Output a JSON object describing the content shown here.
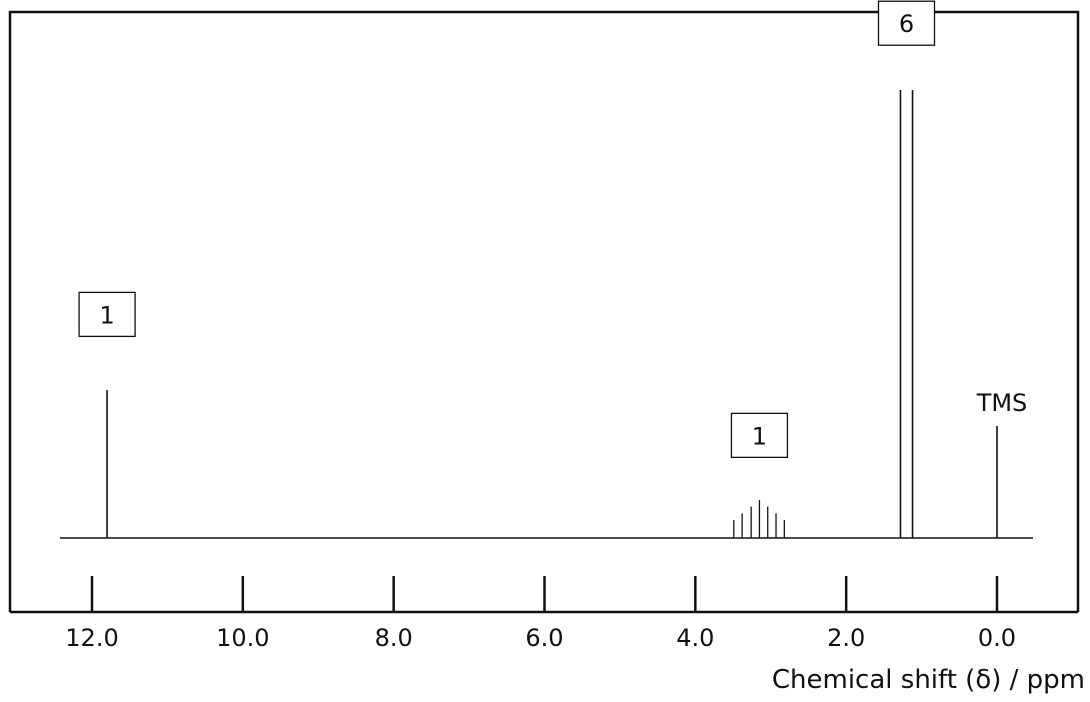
{
  "chart_data": {
    "type": "line",
    "x_axis": {
      "label": "Chemical shift (δ) / ppm",
      "reversed": true,
      "range": [
        12.4,
        -0.5
      ],
      "ticks": [
        12.0,
        10.0,
        8.0,
        6.0,
        4.0,
        2.0,
        0.0
      ],
      "tick_labels": [
        "12.0",
        "10.0",
        "8.0",
        "6.0",
        "4.0",
        "2.0",
        "0.0"
      ]
    },
    "y_axis": {
      "label": "",
      "shown": false
    },
    "grid": false,
    "peaks": [
      {
        "shift": 11.8,
        "height": 0.33,
        "integration": "1"
      },
      {
        "shift": 3.15,
        "height": 0.085,
        "integration": "1",
        "multiplicity_lines": [
          {
            "shift": 3.49,
            "height": 0.04
          },
          {
            "shift": 3.38,
            "height": 0.055
          },
          {
            "shift": 3.26,
            "height": 0.07
          },
          {
            "shift": 3.15,
            "height": 0.085
          },
          {
            "shift": 3.04,
            "height": 0.07
          },
          {
            "shift": 2.93,
            "height": 0.055
          },
          {
            "shift": 2.82,
            "height": 0.04
          }
        ]
      },
      {
        "shift": 1.28,
        "height": 1.0,
        "integration": "6"
      },
      {
        "shift": 1.12,
        "height": 1.0,
        "integration": "6"
      },
      {
        "shift": 0.0,
        "height": 0.25,
        "label": "TMS"
      }
    ],
    "integration_boxes": [
      {
        "text": "1",
        "shift": 11.8,
        "level": 0.45
      },
      {
        "text": "1",
        "shift": 3.15,
        "level": 0.18
      },
      {
        "text": "6",
        "shift": 1.2,
        "level": 1.1
      }
    ],
    "annotations": [
      {
        "text": "TMS",
        "shift": 0.0
      }
    ]
  }
}
